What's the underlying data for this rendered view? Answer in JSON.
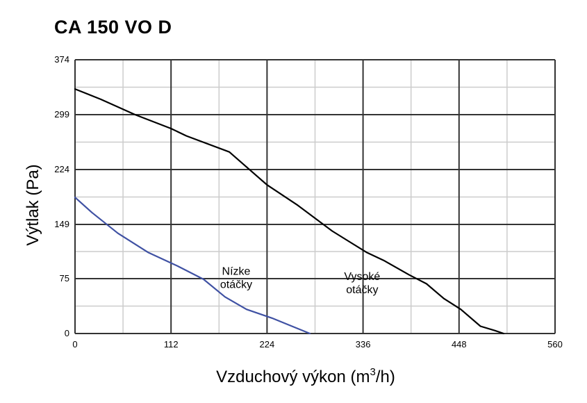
{
  "chart_data": {
    "type": "line",
    "title": "CA 150 VO D",
    "xlabel": "Vzduchový výkon (m",
    "xlabel_sup": "3",
    "xlabel_end": "/h)",
    "ylabel": "Výtlak (Pa)",
    "xlim": [
      0,
      560
    ],
    "ylim": [
      0,
      374
    ],
    "x_ticks": [
      0,
      112,
      224,
      336,
      448,
      560
    ],
    "y_ticks": [
      0,
      75,
      149,
      224,
      299,
      374
    ],
    "x_tick_labels": [
      "0",
      "112",
      "224",
      "336",
      "448",
      "560"
    ],
    "y_tick_labels": [
      "0",
      "75",
      "149",
      "224",
      "299",
      "374"
    ],
    "grid": true,
    "series": [
      {
        "label_lines": [
          "Nízke",
          "otáčky"
        ],
        "label_pos": [
          188,
          80
        ],
        "color": "#3f51a3",
        "x": [
          0,
          20,
          50,
          85,
          120,
          150,
          175,
          200,
          230,
          255,
          274
        ],
        "y": [
          186,
          165,
          137,
          111,
          92,
          74,
          50,
          33,
          21,
          9,
          0
        ]
      },
      {
        "label_lines": [
          "Vysoké",
          "otáčky"
        ],
        "label_pos": [
          335,
          73
        ],
        "color": "#000000",
        "x": [
          0,
          30,
          70,
          112,
          130,
          180,
          224,
          260,
          300,
          340,
          360,
          390,
          410,
          430,
          450,
          473,
          490,
          500
        ],
        "y": [
          334,
          320,
          299,
          280,
          270,
          248,
          203,
          175,
          140,
          111,
          100,
          80,
          68,
          48,
          33,
          10,
          4,
          0
        ]
      }
    ]
  }
}
